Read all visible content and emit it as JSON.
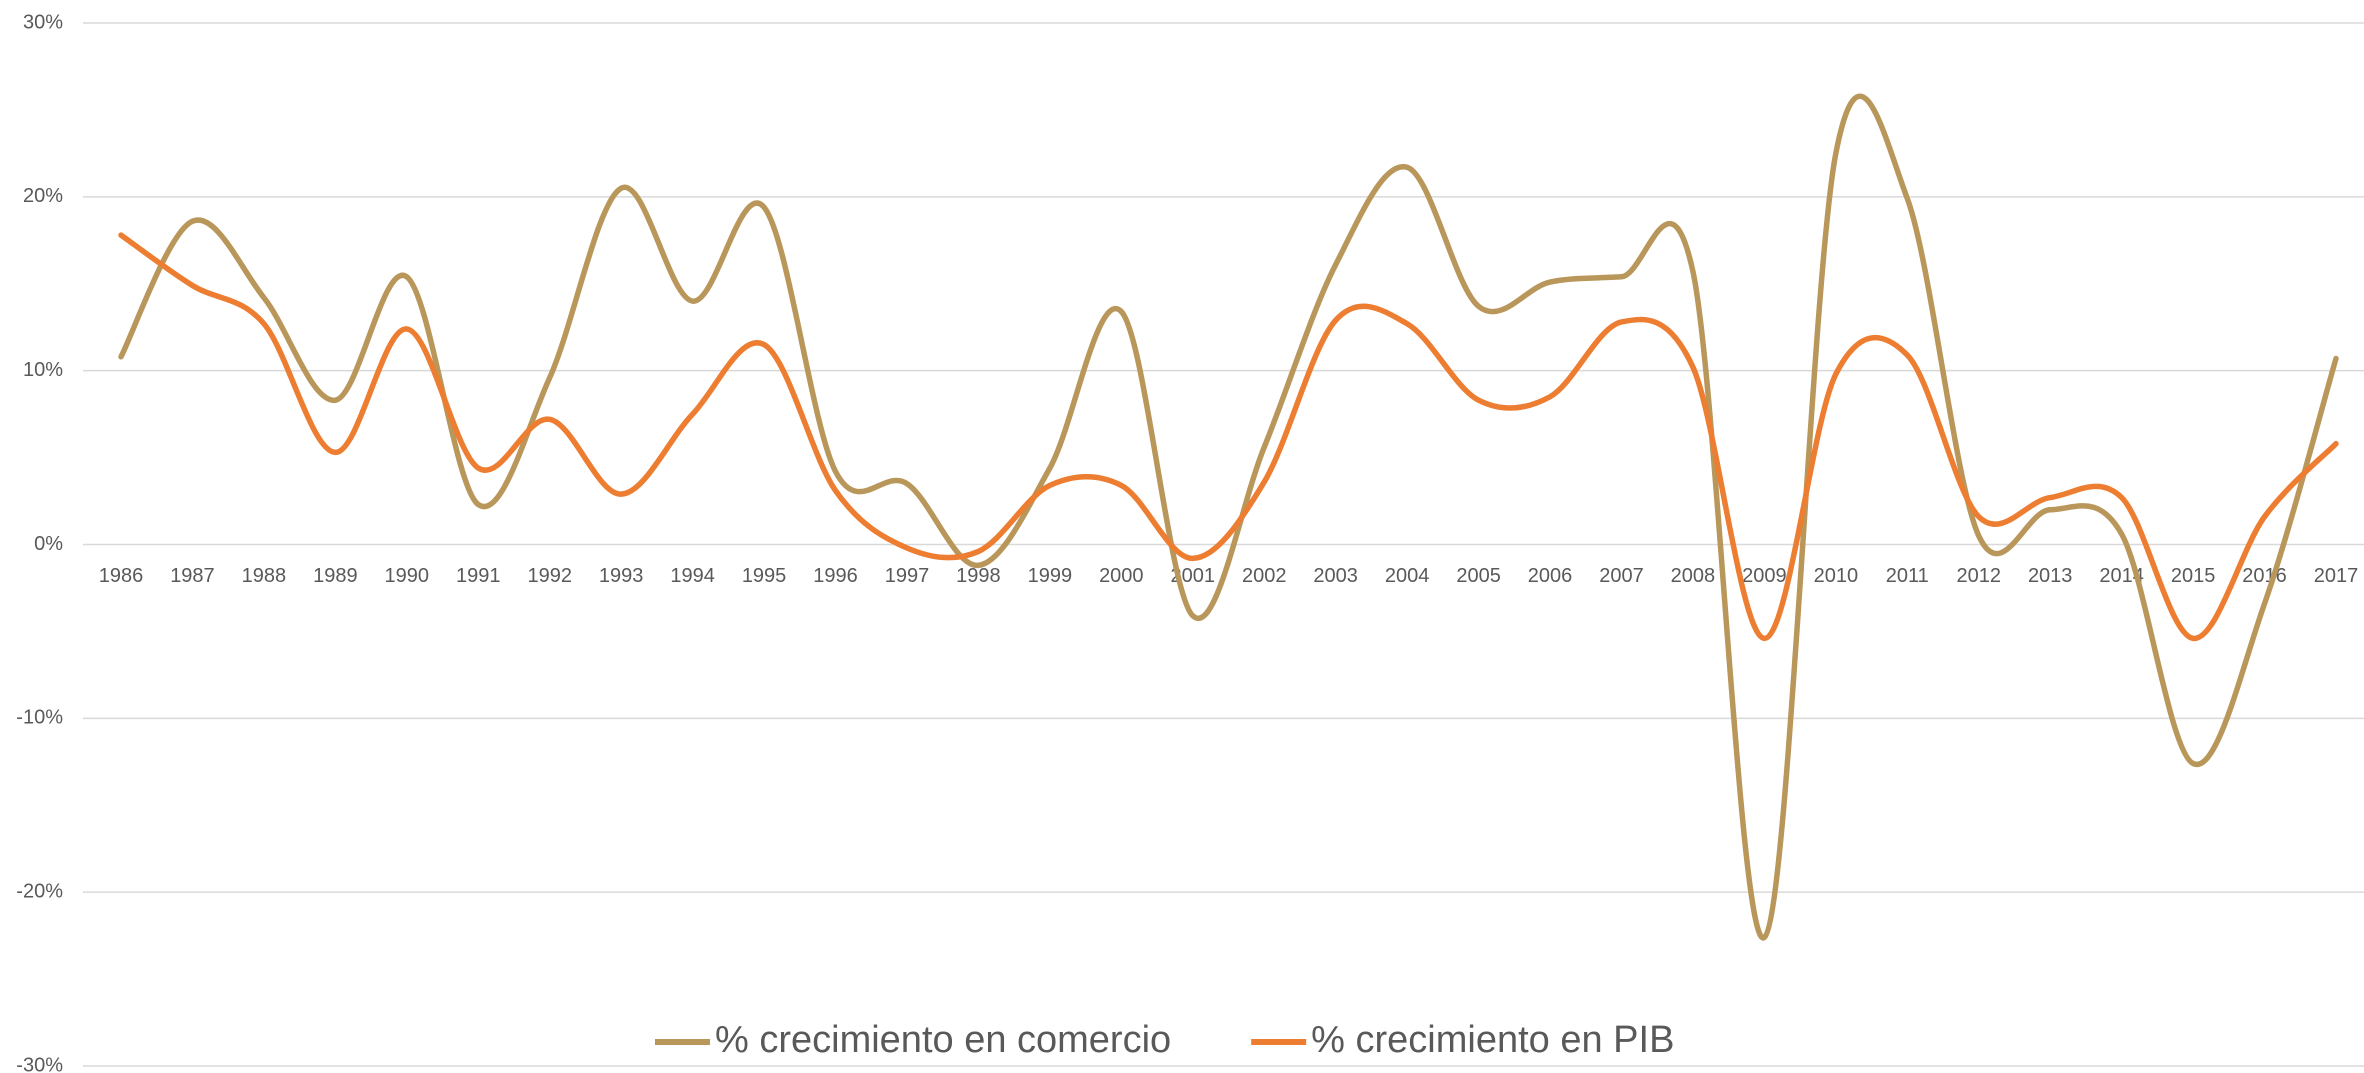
{
  "chart_data": {
    "type": "line",
    "categories": [
      "1986",
      "1987",
      "1988",
      "1989",
      "1990",
      "1991",
      "1992",
      "1993",
      "1994",
      "1995",
      "1996",
      "1997",
      "1998",
      "1999",
      "2000",
      "2001",
      "2002",
      "2003",
      "2004",
      "2005",
      "2006",
      "2007",
      "2008",
      "2009",
      "2010",
      "2011",
      "2012",
      "2013",
      "2014",
      "2015",
      "2016",
      "2017"
    ],
    "series": [
      {
        "name": "% crecimiento en comercio",
        "color": "#b9975b",
        "values": [
          10.8,
          18.6,
          14.2,
          8.3,
          15.4,
          2.3,
          9.6,
          20.5,
          14.0,
          19.4,
          4.2,
          3.5,
          -1.2,
          4.4,
          13.4,
          -4.1,
          5.6,
          16.1,
          21.7,
          13.7,
          15.1,
          15.4,
          15.7,
          -22.6,
          22.5,
          19.9,
          0.5,
          2.0,
          0.6,
          -12.6,
          -3.4,
          10.7
        ]
      },
      {
        "name": "% crecimiento en PIB",
        "color": "#ed7d31",
        "values": [
          17.8,
          14.9,
          12.7,
          5.3,
          12.4,
          4.4,
          7.2,
          2.9,
          7.5,
          11.5,
          3.1,
          -0.2,
          -0.4,
          3.4,
          3.4,
          -0.8,
          3.6,
          12.9,
          12.7,
          8.3,
          8.5,
          12.8,
          10.2,
          -5.4,
          9.8,
          10.9,
          1.6,
          2.7,
          2.7,
          -5.4,
          1.6,
          5.8
        ]
      }
    ],
    "ylim": [
      -30,
      30
    ],
    "yticks": [
      {
        "value": -30,
        "label": "-30%"
      },
      {
        "value": -20,
        "label": "-20%"
      },
      {
        "value": -10,
        "label": "-10%"
      },
      {
        "value": 0,
        "label": "0%"
      },
      {
        "value": 10,
        "label": "10%"
      },
      {
        "value": 20,
        "label": "20%"
      },
      {
        "value": 30,
        "label": "30%"
      }
    ],
    "grid": true,
    "legend": "bottom"
  }
}
